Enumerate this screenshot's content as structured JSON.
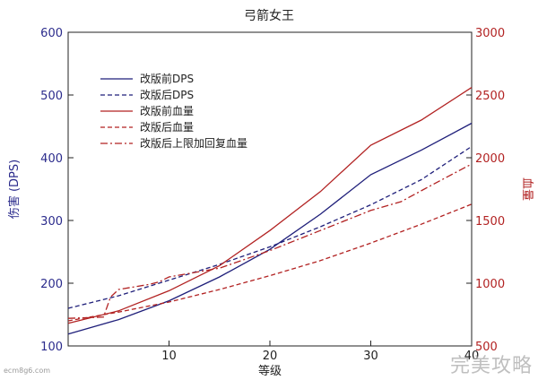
{
  "chart_data": {
    "type": "line",
    "title": "弓箭女王",
    "xlabel": "等级",
    "ylabel_left": "伤害 (DPS)",
    "ylabel_right": "血量",
    "xlim": [
      0,
      40
    ],
    "ylim_left": [
      100,
      600
    ],
    "ylim_right": [
      500,
      3000
    ],
    "x_ticks": [
      10,
      20,
      30,
      40
    ],
    "y_ticks_left": [
      100,
      200,
      300,
      400,
      500,
      600
    ],
    "y_ticks_right": [
      500,
      1000,
      1500,
      2000,
      2500,
      3000
    ],
    "grid": false,
    "legend_position": "upper-left",
    "series": [
      {
        "name": "改版前DPS",
        "axis": "left",
        "color": "#1f1f7a",
        "dash": "solid",
        "x": [
          0,
          5,
          10,
          15,
          20,
          25,
          30,
          35,
          40
        ],
        "y": [
          119,
          142,
          172,
          210,
          254,
          310,
          373,
          412,
          455
        ]
      },
      {
        "name": "改版后DPS",
        "axis": "left",
        "color": "#1f1f7a",
        "dash": "dashed",
        "x": [
          0,
          5,
          10,
          15,
          20,
          25,
          30,
          35,
          40
        ],
        "y": [
          160,
          180,
          205,
          230,
          258,
          290,
          325,
          365,
          418
        ]
      },
      {
        "name": "改版前血量",
        "axis": "right",
        "color": "#b22222",
        "dash": "solid",
        "x": [
          0,
          5,
          10,
          15,
          20,
          25,
          30,
          35,
          40
        ],
        "y": [
          680,
          780,
          940,
          1140,
          1420,
          1730,
          2100,
          2300,
          2560
        ]
      },
      {
        "name": "改版后血量",
        "axis": "right",
        "color": "#b22222",
        "dash": "dashed",
        "x": [
          0,
          5,
          10,
          15,
          20,
          25,
          30,
          35,
          40
        ],
        "y": [
          700,
          770,
          850,
          950,
          1060,
          1180,
          1320,
          1470,
          1630
        ]
      },
      {
        "name": "改版后上限加回复血量",
        "axis": "right",
        "color": "#b22222",
        "dash": "dashdot",
        "x": [
          0,
          3.5,
          4.2,
          5,
          8,
          9,
          10,
          15,
          20,
          25,
          30,
          33,
          36,
          40
        ],
        "y": [
          720,
          730,
          890,
          950,
          990,
          1010,
          1050,
          1120,
          1260,
          1420,
          1580,
          1650,
          1780,
          1950
        ]
      }
    ]
  },
  "watermark": {
    "left_text": "ecm8g6.com",
    "right_text": "完美攻略"
  }
}
